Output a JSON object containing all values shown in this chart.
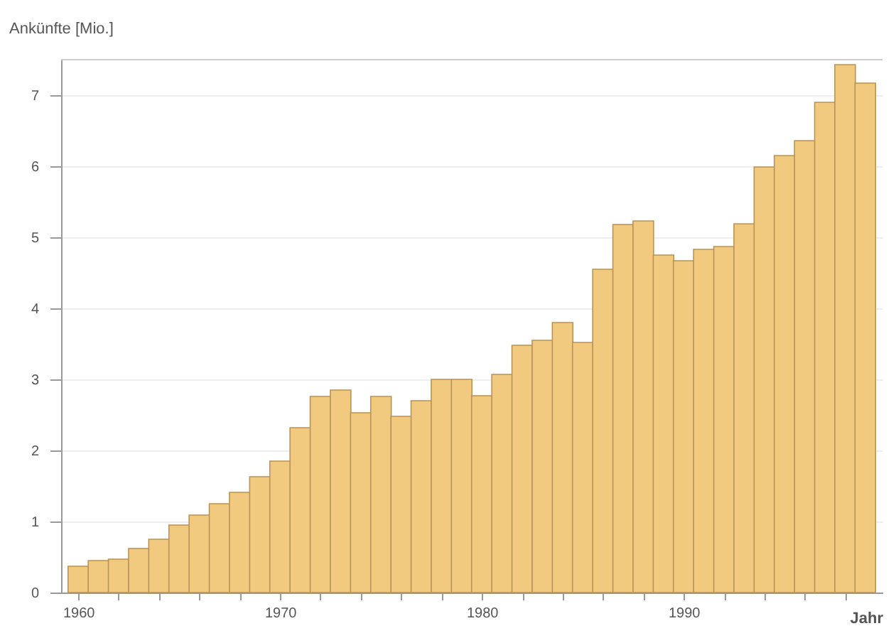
{
  "chart_data": {
    "type": "bar",
    "ylabel": "Ankünfte [Mio.]",
    "xlabel": "Jahr",
    "x": [
      1960,
      1961,
      1962,
      1963,
      1964,
      1965,
      1966,
      1967,
      1968,
      1969,
      1970,
      1971,
      1972,
      1973,
      1974,
      1975,
      1976,
      1977,
      1978,
      1979,
      1980,
      1981,
      1982,
      1983,
      1984,
      1985,
      1986,
      1987,
      1988,
      1989,
      1990,
      1991,
      1992,
      1993,
      1994,
      1995,
      1996,
      1997,
      1998,
      1999
    ],
    "values": [
      0.37,
      0.45,
      0.47,
      0.62,
      0.75,
      0.95,
      1.09,
      1.25,
      1.41,
      1.63,
      1.85,
      2.32,
      2.76,
      2.85,
      2.53,
      2.76,
      2.48,
      2.7,
      3.0,
      3.0,
      2.77,
      3.07,
      3.48,
      3.55,
      3.8,
      3.52,
      4.55,
      5.18,
      5.23,
      4.75,
      4.67,
      4.83,
      4.87,
      5.19,
      5.99,
      6.15,
      6.36,
      6.9,
      7.43,
      7.17
    ],
    "color": "#f1ca80",
    "xlim": [
      1959.5,
      1999.5
    ],
    "xticks": [
      1960,
      {
        "value": 1962,
        "label": null
      },
      {
        "value": 1964,
        "label": null
      },
      {
        "value": 1966,
        "label": null
      },
      {
        "value": 1968,
        "label": null
      },
      1970,
      {
        "value": 1972,
        "label": null
      },
      {
        "value": 1974,
        "label": null
      },
      {
        "value": 1976,
        "label": null
      },
      {
        "value": 1978,
        "label": null
      },
      1980,
      {
        "value": 1982,
        "label": null
      },
      {
        "value": 1984,
        "label": null
      },
      {
        "value": 1986,
        "label": null
      },
      {
        "value": 1988,
        "label": null
      },
      1990,
      {
        "value": 1992,
        "label": null
      },
      {
        "value": 1994,
        "label": null
      },
      {
        "value": 1996,
        "label": null
      },
      {
        "value": 1998,
        "label": null
      }
    ],
    "ylim": [
      0,
      7.5
    ],
    "yticks": [
      0,
      1,
      2,
      3,
      4,
      5,
      6,
      7
    ],
    "grid": "y"
  }
}
